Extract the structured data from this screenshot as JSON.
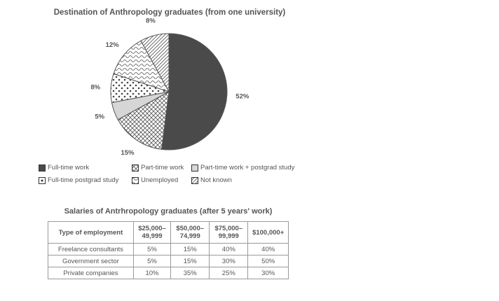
{
  "chart_data": [
    {
      "type": "pie",
      "title": "Destination of Anthropology graduates (from one university)",
      "slices": [
        {
          "label": "Full-time work",
          "value": 52,
          "display": "52%",
          "pattern": "solid-dark"
        },
        {
          "label": "Part-time work",
          "value": 15,
          "display": "15%",
          "pattern": "crosshatch"
        },
        {
          "label": "Part-time work + postgrad study",
          "value": 5,
          "display": "5%",
          "pattern": "light-grey"
        },
        {
          "label": "Full-time postgrad study",
          "value": 8,
          "display": "8%",
          "pattern": "dots"
        },
        {
          "label": "Unemployed",
          "value": 12,
          "display": "12%",
          "pattern": "wavy"
        },
        {
          "label": "Not known",
          "value": 8,
          "display": "8%",
          "pattern": "diagonal"
        }
      ],
      "legend": [
        "Full-time work",
        "Part-time work",
        "Part-time work + postgrad study",
        "Full-time postgrad study",
        "Unemployed",
        "Not known"
      ]
    },
    {
      "type": "table",
      "title": "Salaries of Antrhropology graduates (after 5 years' work)",
      "header": {
        "rowhead": "Type of employment",
        "columns": [
          [
            "$25,000–",
            "49,999"
          ],
          [
            "$50,000–",
            "74,999"
          ],
          [
            "$75,000–",
            "99,999"
          ],
          [
            "$100,000+",
            ""
          ]
        ]
      },
      "rows": [
        {
          "label": "Freelance consultants",
          "values": [
            "5%",
            "15%",
            "40%",
            "40%"
          ]
        },
        {
          "label": "Government sector",
          "values": [
            "5%",
            "15%",
            "30%",
            "50%"
          ]
        },
        {
          "label": "Private companies",
          "values": [
            "10%",
            "35%",
            "25%",
            "30%"
          ]
        }
      ]
    }
  ]
}
